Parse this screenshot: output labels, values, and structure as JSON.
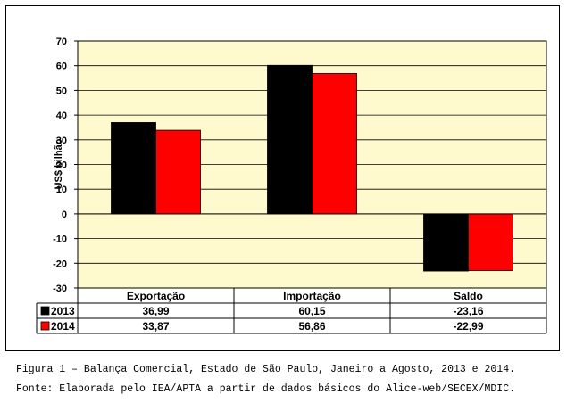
{
  "chart_data": {
    "type": "bar",
    "ylabel": "US$ bilhão",
    "ylim": [
      -30,
      70
    ],
    "yticks": [
      -30,
      -20,
      -10,
      0,
      10,
      20,
      30,
      40,
      50,
      60,
      70
    ],
    "grid": true,
    "categories": [
      "Exportação",
      "Importação",
      "Saldo"
    ],
    "series": [
      {
        "name": "2013",
        "color": "#000000",
        "values": [
          36.99,
          60.15,
          -23.16
        ],
        "labels": [
          "36,99",
          "60,15",
          "-23,16"
        ]
      },
      {
        "name": "2014",
        "color": "#ff0000",
        "values": [
          33.87,
          56.86,
          -22.99
        ],
        "labels": [
          "33,87",
          "56,86",
          "-22,99"
        ]
      }
    ],
    "plot_background": "#fffacd"
  },
  "caption": {
    "figure": "Figura 1 – Balança Comercial, Estado de São Paulo, Janeiro a Agosto, 2013 e 2014.",
    "source": "Fonte: Elaborada pelo IEA/APTA a partir de dados básicos do Alice-web/SECEX/MDIC."
  }
}
